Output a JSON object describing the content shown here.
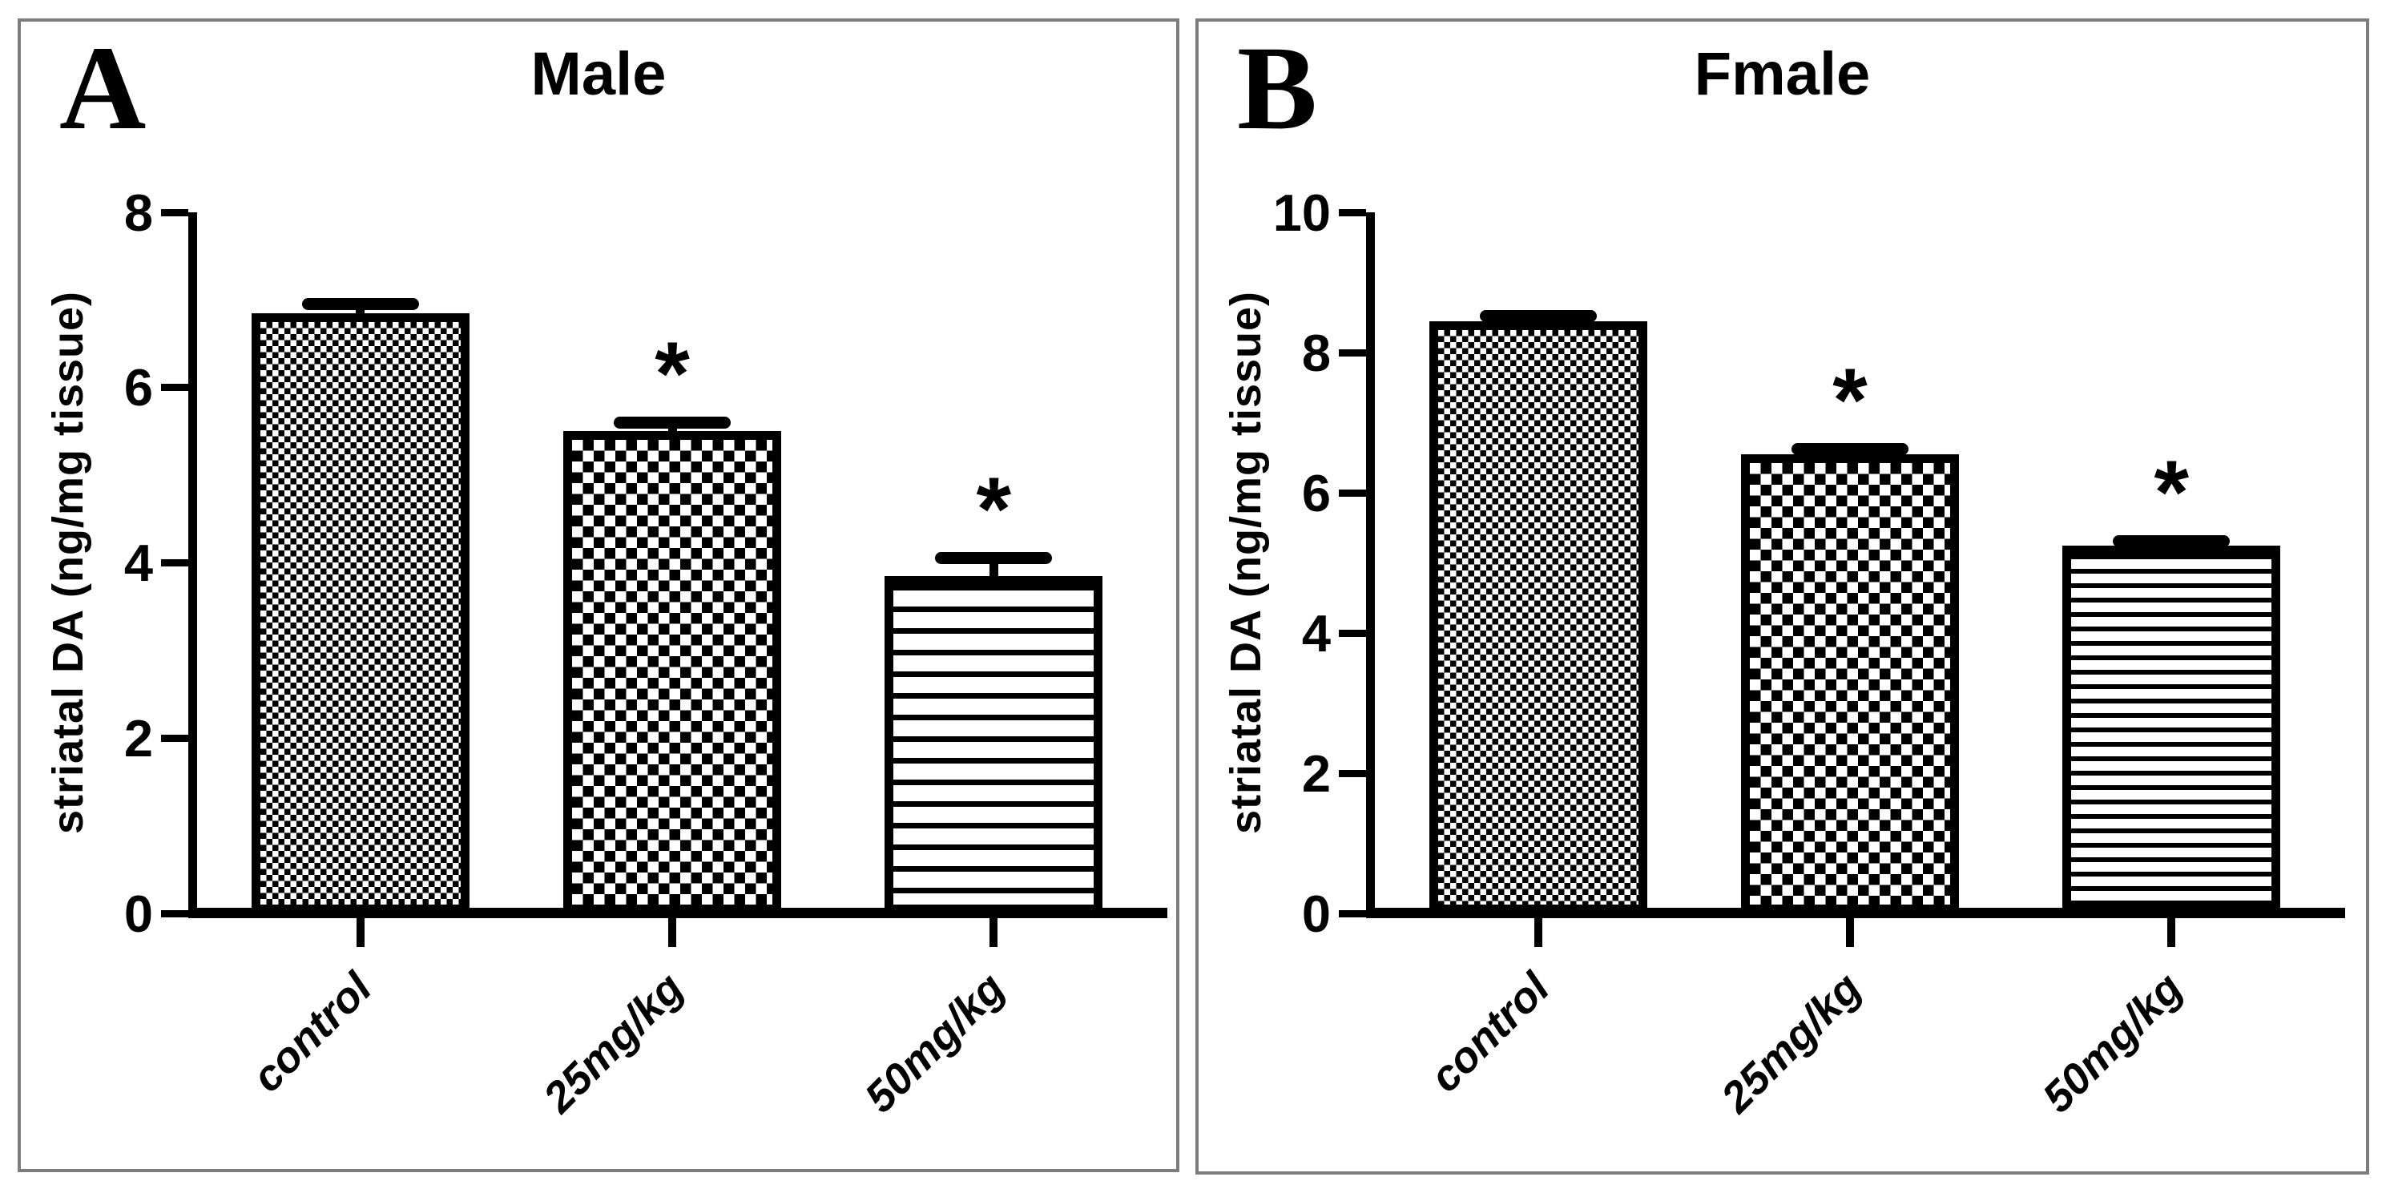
{
  "colors": {
    "ink": "#000000",
    "frame": "#7d7d7d",
    "background": "#ffffff"
  },
  "chart_data": [
    {
      "type": "bar",
      "panel_letter": "A",
      "title": "Male",
      "ylabel": "striatal DA  (ng/mg tissue)",
      "xlabel": "",
      "categories": [
        "control",
        "25mg/kg",
        "50mg/kg"
      ],
      "values": [
        6.85,
        5.5,
        3.85
      ],
      "errors": [
        0.1,
        0.1,
        0.2
      ],
      "significance": [
        "",
        "*",
        "*"
      ],
      "ylim": [
        0,
        8
      ],
      "yticks": [
        0,
        2,
        4,
        6,
        8
      ],
      "bar_patterns": [
        "fine-checkerboard",
        "checkerboard",
        "horizontal-stripes"
      ],
      "bar_fill": "black-and-white pattern",
      "grid": false,
      "legend": null
    },
    {
      "type": "bar",
      "panel_letter": "B",
      "title": "Fmale",
      "ylabel": "striatal DA  (ng/mg tissue)",
      "xlabel": "",
      "categories": [
        "control",
        "25mg/kg",
        "50mg/kg"
      ],
      "values": [
        8.45,
        6.55,
        5.25
      ],
      "errors": [
        0.07,
        0.07,
        0.05
      ],
      "significance": [
        "",
        "*",
        "*"
      ],
      "ylim": [
        0,
        10
      ],
      "yticks": [
        0,
        2,
        4,
        6,
        8,
        10
      ],
      "bar_patterns": [
        "fine-checkerboard",
        "checkerboard",
        "horizontal-stripes"
      ],
      "bar_fill": "black-and-white pattern",
      "grid": false,
      "legend": null
    }
  ]
}
